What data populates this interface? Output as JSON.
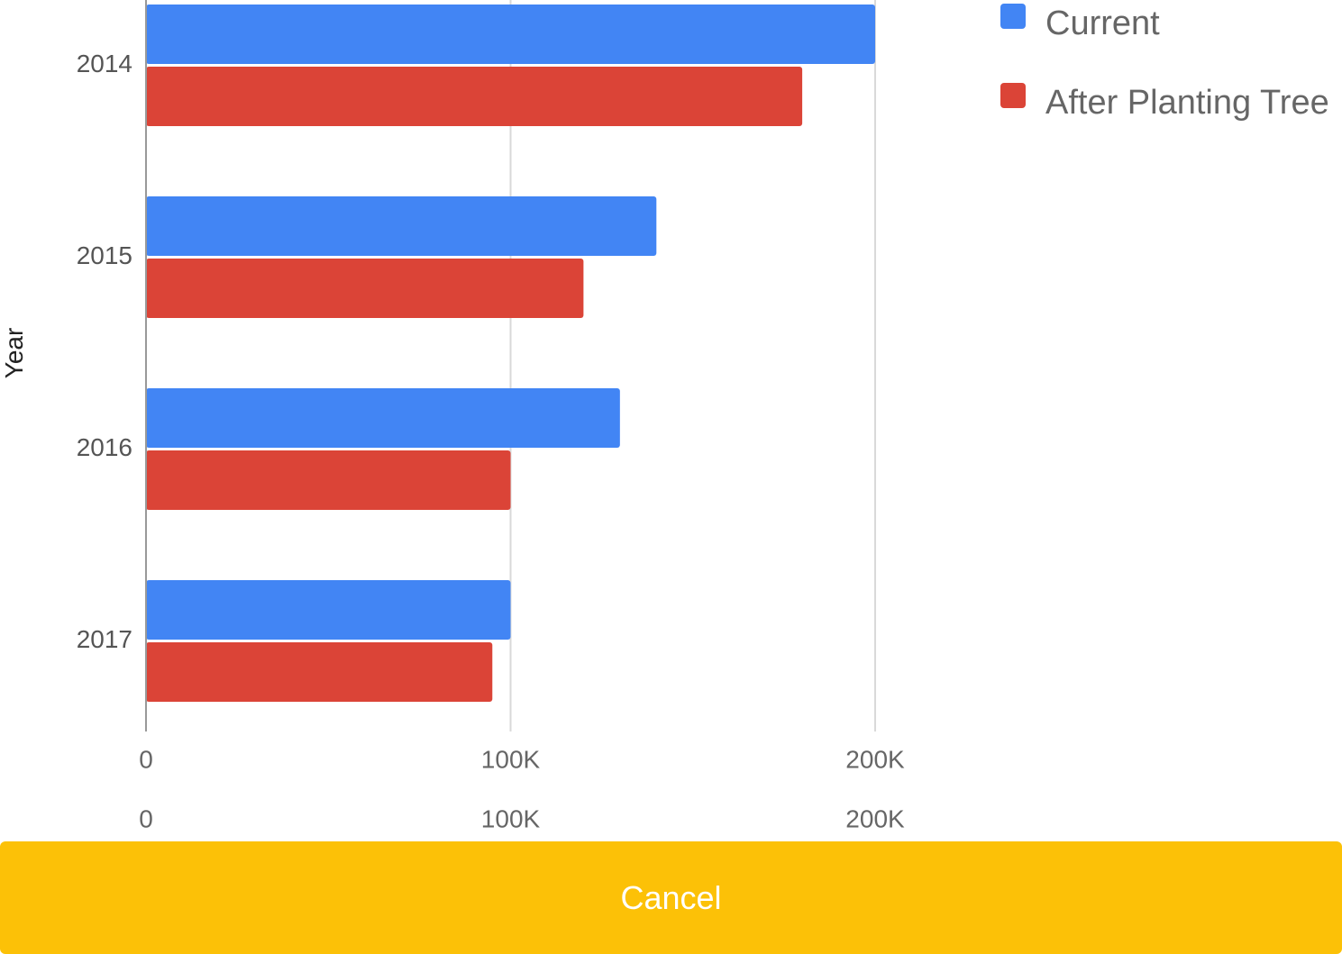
{
  "chart_data": {
    "type": "bar",
    "orientation": "horizontal",
    "categories": [
      "2014",
      "2015",
      "2016",
      "2017"
    ],
    "series": [
      {
        "name": "Current",
        "color": "#4285F4",
        "values": [
          200000,
          140000,
          130000,
          100000
        ]
      },
      {
        "name": "After Planting Tree",
        "color": "#DB4437",
        "values": [
          180000,
          120000,
          100000,
          95000
        ]
      }
    ],
    "ylabel": "Year",
    "xlim": [
      0,
      200000
    ],
    "x_ticks": [
      "0",
      "100K",
      "200K"
    ],
    "x_tick_values": [
      0,
      100000,
      200000
    ],
    "grid": true,
    "legend_position": "top-right"
  },
  "buttons": {
    "cancel_label": "Cancel",
    "cancel_color": "#FCC107"
  }
}
